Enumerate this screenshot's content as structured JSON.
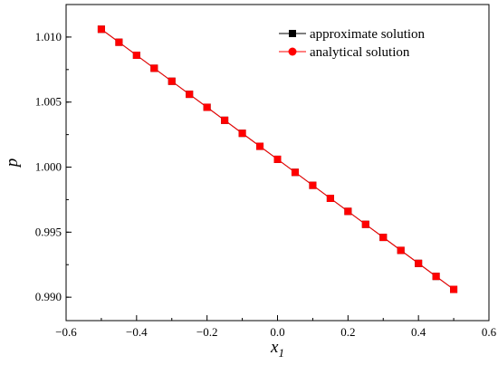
{
  "chart_data": {
    "type": "line",
    "x_label_main": "x",
    "x_label_sub": "1",
    "ylabel": "p",
    "xlim": [
      -0.6,
      0.6
    ],
    "ylim": [
      0.9882,
      1.0125
    ],
    "x_ticks": [
      -0.6,
      -0.4,
      -0.2,
      0.0,
      0.2,
      0.4,
      0.6
    ],
    "x_tick_labels": [
      "−0.6",
      "−0.4",
      "−0.2",
      "0.0",
      "0.2",
      "0.4",
      "0.6"
    ],
    "y_ticks": [
      0.99,
      0.995,
      1.0,
      1.005,
      1.01
    ],
    "y_tick_labels": [
      "0.990",
      "0.995",
      "1.000",
      "1.005",
      "1.010"
    ],
    "x": [
      -0.5,
      -0.45,
      -0.4,
      -0.35,
      -0.3,
      -0.25,
      -0.2,
      -0.15,
      -0.1,
      -0.05,
      0.0,
      0.05,
      0.1,
      0.15,
      0.2,
      0.25,
      0.3,
      0.35,
      0.4,
      0.45,
      0.5
    ],
    "series": [
      {
        "name": "approximate solution",
        "color": "#000000",
        "marker": "square",
        "values": [
          1.0106,
          1.0096,
          1.0086,
          1.0076,
          1.0066,
          1.0056,
          1.0046,
          1.0036,
          1.0026,
          1.0016,
          1.0006,
          0.9996,
          0.9986,
          0.9976,
          0.9966,
          0.9956,
          0.9946,
          0.9936,
          0.9926,
          0.9916,
          0.9906
        ]
      },
      {
        "name": "analytical solution",
        "color": "#ff0000",
        "marker": "circle",
        "values": [
          1.0106,
          1.0096,
          1.0086,
          1.0076,
          1.0066,
          1.0056,
          1.0046,
          1.0036,
          1.0026,
          1.0016,
          1.0006,
          0.9996,
          0.9986,
          0.9976,
          0.9966,
          0.9956,
          0.9946,
          0.9936,
          0.9926,
          0.9916,
          0.9906
        ]
      }
    ],
    "legend_position": "top-right",
    "grid": false
  }
}
